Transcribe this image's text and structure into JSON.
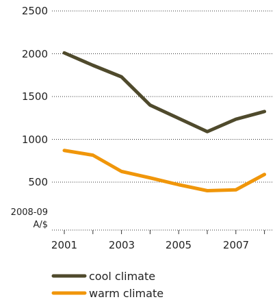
{
  "chart_data": {
    "type": "line",
    "x": [
      2001,
      2002,
      2003,
      2004,
      2005,
      2006,
      2007,
      2008
    ],
    "series": [
      {
        "name": "cool climate",
        "color": "#4f4a2c",
        "values": [
          2010,
          1865,
          1730,
          1400,
          1245,
          1090,
          1235,
          1325
        ]
      },
      {
        "name": "warm climate",
        "color": "#f0960a",
        "values": [
          870,
          815,
          625,
          550,
          470,
          400,
          410,
          590
        ]
      }
    ],
    "ylim": [
      0,
      2500
    ],
    "yticks": [
      "0",
      "500",
      "1000",
      "1500",
      "2000",
      "2500"
    ],
    "xticks": [
      "2001",
      "2003",
      "2005",
      "2007"
    ],
    "ylabel_line1": "2008-09",
    "ylabel_line2": "A/$",
    "grid": "dotted horizontal",
    "legend_position": "bottom"
  }
}
